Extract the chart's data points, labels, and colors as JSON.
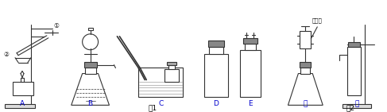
{
  "fig_width": 4.87,
  "fig_height": 1.41,
  "lc": "#333333",
  "lw": 0.8,
  "label_color": "#0000cc",
  "label_A": "A",
  "label_B": "B",
  "label_C": "C",
  "label_D": "D",
  "label_E": "E",
  "label_jia": "甲",
  "label_yi": "乙",
  "fig1": "图1",
  "fig2": "图2",
  "c1": "①",
  "c2": "②",
  "zhusheqi": "注射器"
}
